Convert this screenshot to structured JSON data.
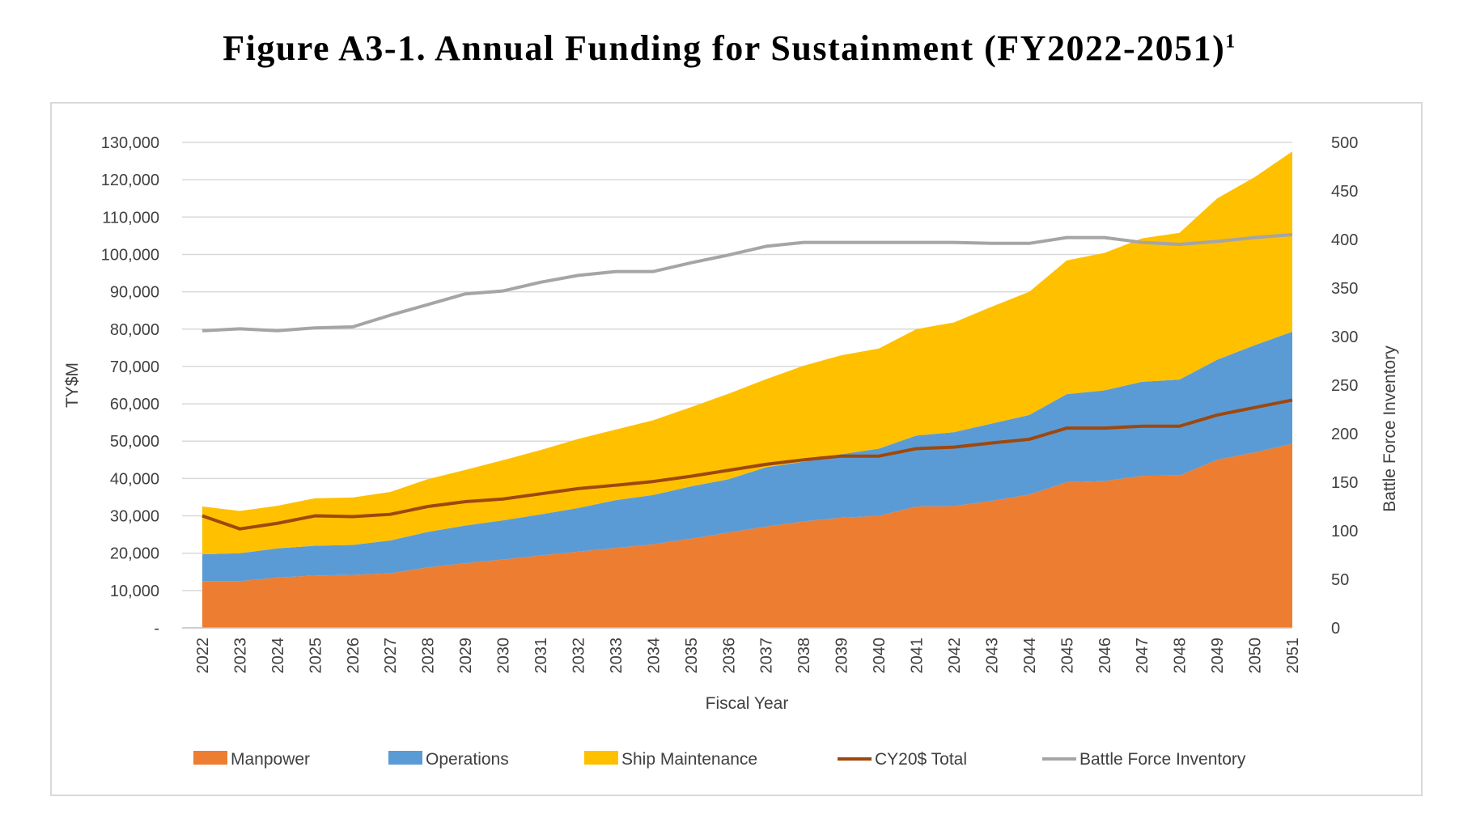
{
  "figure": {
    "title": "Figure  A3-1.  Annual  Funding  for  Sustainment  (FY2022-2051)",
    "footnote_marker": "1"
  },
  "chart_data": {
    "type": "area",
    "xlabel": "Fiscal Year",
    "ylabel": "TY$M",
    "y2label": "Battle Force Inventory",
    "ylim": [
      0,
      130000
    ],
    "y2lim": [
      0,
      500
    ],
    "yticks": [
      "-",
      "10,000",
      "20,000",
      "30,000",
      "40,000",
      "50,000",
      "60,000",
      "70,000",
      "80,000",
      "90,000",
      "100,000",
      "110,000",
      "120,000",
      "130,000"
    ],
    "y2ticks": [
      "0",
      "50",
      "100",
      "150",
      "200",
      "250",
      "300",
      "350",
      "400",
      "450",
      "500"
    ],
    "grid": true,
    "legend_position": "bottom",
    "categories": [
      "2022",
      "2023",
      "2024",
      "2025",
      "2026",
      "2027",
      "2028",
      "2029",
      "2030",
      "2031",
      "2032",
      "2033",
      "2034",
      "2035",
      "2036",
      "2037",
      "2038",
      "2039",
      "2040",
      "2041",
      "2042",
      "2043",
      "2044",
      "2045",
      "2046",
      "2047",
      "2048",
      "2049",
      "2050",
      "2051"
    ],
    "stacked_series": [
      {
        "name": "Manpower",
        "color": "#ED7D31",
        "values": [
          12500,
          12500,
          13500,
          14000,
          14200,
          14600,
          16200,
          17300,
          18300,
          19400,
          20400,
          21400,
          22400,
          23900,
          25500,
          27100,
          28500,
          29500,
          30000,
          32500,
          32600,
          34000,
          35700,
          39000,
          39300,
          40700,
          40800,
          45000,
          47000,
          49300
        ]
      },
      {
        "name": "Operations",
        "color": "#5B9BD5",
        "values": [
          7200,
          7500,
          7800,
          8000,
          8000,
          8800,
          9500,
          10100,
          10500,
          11000,
          11700,
          12800,
          13200,
          14000,
          14300,
          15900,
          16000,
          17000,
          18000,
          19000,
          19800,
          20700,
          21300,
          23600,
          24300,
          25200,
          25700,
          26800,
          28700,
          30000
        ]
      },
      {
        "name": "Ship Maintenance",
        "color": "#FFC000",
        "values": [
          12800,
          11300,
          11400,
          12700,
          12700,
          13000,
          14100,
          14900,
          16100,
          17200,
          18500,
          18900,
          20000,
          21200,
          22900,
          23600,
          25700,
          26500,
          26800,
          28500,
          29400,
          31300,
          33000,
          35800,
          36800,
          38400,
          39300,
          43200,
          45000,
          48300
        ]
      }
    ],
    "line_series": [
      {
        "name": "CY20$ Total",
        "axis": "left",
        "color": "#9E480E",
        "values": [
          30000,
          26500,
          28000,
          30000,
          29800,
          30400,
          32500,
          33800,
          34500,
          35900,
          37300,
          38200,
          39200,
          40600,
          42200,
          43800,
          45000,
          46000,
          46000,
          48000,
          48400,
          49500,
          50500,
          53500,
          53500,
          54000,
          54000,
          57000,
          59000,
          61000
        ]
      },
      {
        "name": "Battle Force Inventory",
        "axis": "right",
        "color": "#A5A5A5",
        "values": [
          306,
          308,
          306,
          309,
          310,
          322,
          333,
          344,
          347,
          356,
          363,
          367,
          367,
          376,
          384,
          393,
          397,
          397,
          397,
          397,
          397,
          396,
          396,
          402,
          402,
          397,
          395,
          398,
          402,
          405
        ]
      }
    ]
  }
}
